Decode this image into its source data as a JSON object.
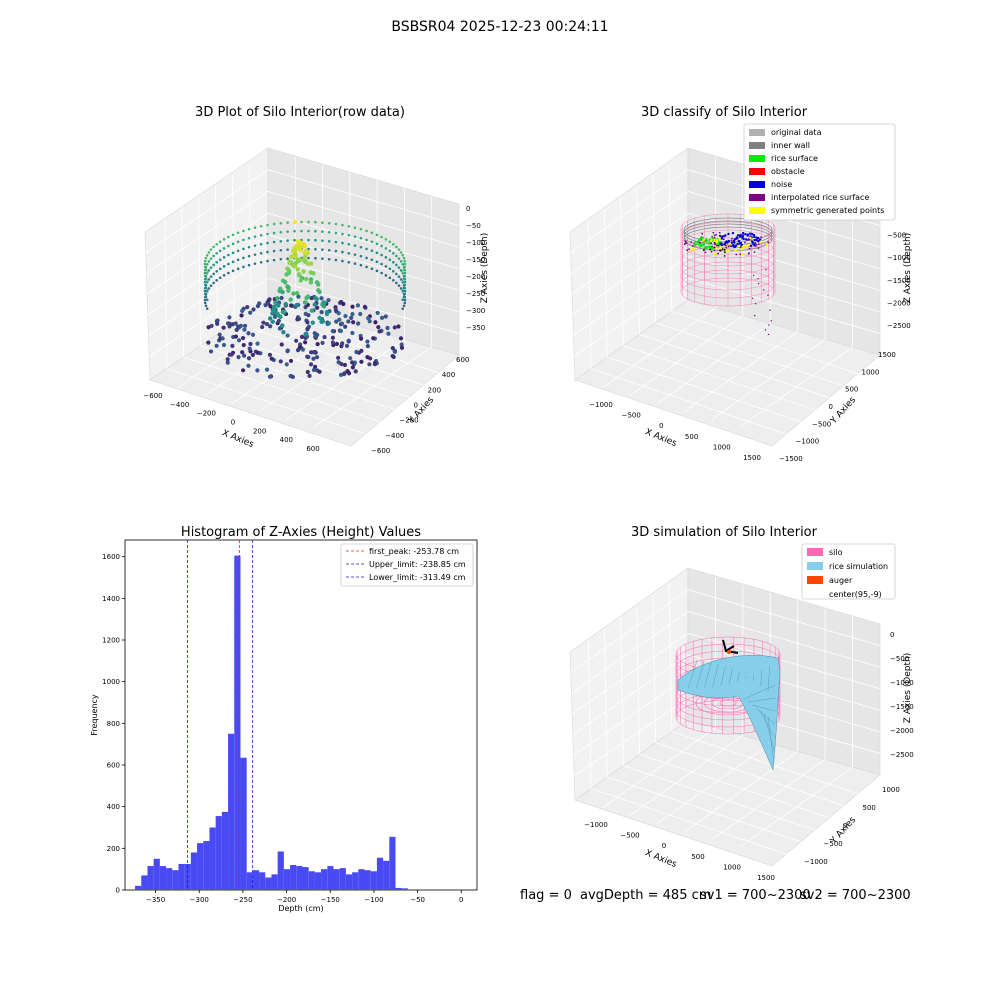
{
  "figure_title": "BSBSR04 2025-12-23 00:24:11",
  "colors": {
    "hist_bar": "#4a4af5",
    "first_peak_line": "#dd2222",
    "limit_line": "#1a1ad0",
    "silo_pink": "#ff69b4",
    "rice_sim": "#87ceeb",
    "auger": "#ff4500",
    "pane_light": "#f2f2f2",
    "pane_dark": "#e6e6e6"
  },
  "chart_data": [
    {
      "type": "scatter",
      "subtype": "3d",
      "title": "3D Plot of Silo Interior(row data)",
      "xlabel": "X Axies",
      "ylabel": "Y Axies",
      "zlabel": "Z Axies (Depth)",
      "xlim": [
        -650,
        700
      ],
      "ylim": [
        -700,
        700
      ],
      "zlim": [
        -380,
        10
      ],
      "x_ticks": [
        "−600",
        "−400",
        "−200",
        "0",
        "200",
        "400",
        "600"
      ],
      "y_ticks": [
        "−600",
        "−400",
        "−200",
        "0",
        "200",
        "400",
        "600"
      ],
      "z_ticks": [
        "0",
        "−50",
        "−100",
        "−150",
        "−200",
        "−250",
        "−300",
        "−350"
      ],
      "colormap": "viridis",
      "grid": true
    },
    {
      "type": "scatter",
      "subtype": "3d",
      "title": "3D classify of Silo Interior",
      "xlabel": "X Axies",
      "ylabel": "Y Axies",
      "zlabel": "Z Axies (Depth)",
      "x_ticks": [
        "−1000",
        "−500",
        "0",
        "500",
        "1000",
        "1500"
      ],
      "y_ticks": [
        "−1500",
        "−1000",
        "−500",
        "0",
        "500",
        "1000",
        "1500"
      ],
      "z_ticks": [
        "0",
        "−500",
        "−1000",
        "−1500",
        "−2000",
        "−2500"
      ],
      "legend": [
        {
          "label": "original data",
          "color": "#b0b0b0"
        },
        {
          "label": "inner wall",
          "color": "#808080"
        },
        {
          "label": "rice surface",
          "color": "#00ee00"
        },
        {
          "label": "obstacle",
          "color": "#ff0000"
        },
        {
          "label": "noise",
          "color": "#0000dd"
        },
        {
          "label": "interpolated rice surface",
          "color": "#800080"
        },
        {
          "label": "symmetric generated points",
          "color": "#ffff00"
        }
      ],
      "legend_position": "top-right",
      "grid": true
    },
    {
      "type": "bar",
      "subtype": "histogram",
      "title": "Histogram of Z-Axies (Height) Values",
      "xlabel": "Depth (cm)",
      "ylabel": "Frequency",
      "xlim": [
        -385,
        18
      ],
      "ylim": [
        0,
        1680
      ],
      "x_ticks": [
        -350,
        -300,
        -250,
        -200,
        -150,
        -100,
        -50,
        0
      ],
      "x_tick_labels": [
        "−350",
        "−300",
        "−250",
        "−200",
        "−150",
        "−100",
        "−50",
        "0"
      ],
      "y_ticks": [
        0,
        200,
        400,
        600,
        800,
        1000,
        1200,
        1400,
        1600
      ],
      "y_tick_labels": [
        "0",
        "200",
        "400",
        "600",
        "800",
        "1000",
        "1200",
        "1400",
        "1600"
      ],
      "bin_start": -373.5,
      "bin_width": 7.1,
      "values": [
        20,
        70,
        115,
        150,
        115,
        105,
        95,
        125,
        125,
        180,
        225,
        235,
        300,
        355,
        375,
        750,
        1605,
        635,
        85,
        95,
        85,
        60,
        75,
        185,
        100,
        120,
        115,
        110,
        90,
        85,
        100,
        115,
        100,
        105,
        75,
        85,
        100,
        95,
        90,
        155,
        140,
        255,
        10,
        8
      ],
      "lines": [
        {
          "label": "first_peak: -253.78 cm",
          "x": -253.78,
          "color": "#dd2222"
        },
        {
          "label": "Upper_limit: -238.85 cm",
          "x": -238.85,
          "color": "#1a1ad0"
        },
        {
          "label": "Lower_limit: -313.49 cm",
          "x": -313.49,
          "color": "#1a1ad0"
        }
      ],
      "legend_position": "top-right",
      "grid": false
    },
    {
      "type": "area",
      "subtype": "3d-surface",
      "title": "3D simulation of Silo Interior",
      "xlabel": "X Axies",
      "ylabel": "Y Axies",
      "zlabel": "Z Axies (Depth)",
      "x_ticks": [
        "−1000",
        "−500",
        "0",
        "500",
        "1000",
        "1500"
      ],
      "y_ticks": [
        "−1000",
        "−500",
        "0",
        "500",
        "1000"
      ],
      "z_ticks": [
        "0",
        "−500",
        "−1000",
        "−1500",
        "−2000",
        "−2500"
      ],
      "legend": [
        {
          "label": "silo",
          "color": "#ff69b4"
        },
        {
          "label": "rice simulation",
          "color": "#87ceeb"
        },
        {
          "label": "auger",
          "color": "#ff4500"
        },
        {
          "label": "center(95,-9)",
          "color": ""
        }
      ],
      "legend_position": "top-right",
      "grid": true
    }
  ],
  "footer": {
    "flag": "flag = 0",
    "avg_depth": "avgDepth = 485 cm",
    "sv1": "sv1 = 700~2300",
    "sv2": "sv2 = 700~2300"
  }
}
